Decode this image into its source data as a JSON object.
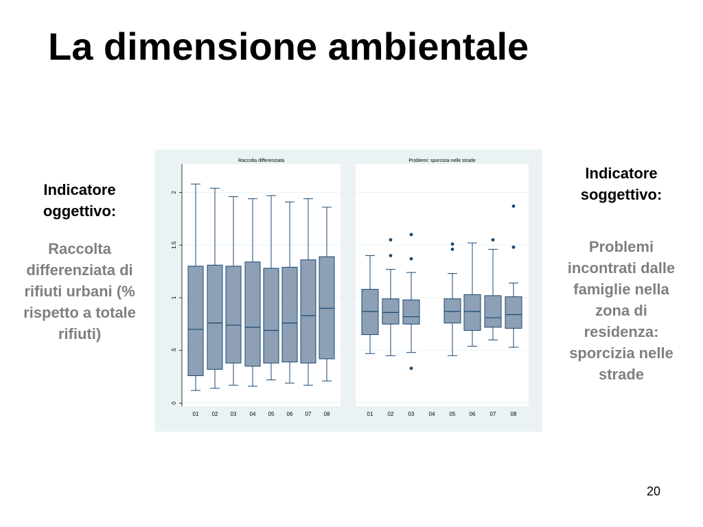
{
  "slide": {
    "title": "La dimensione ambientale",
    "page_number": "20"
  },
  "left_block": {
    "heading": "Indicatore oggettivo:",
    "body": "Raccolta differenziata di rifiuti urbani (% rispetto a totale rifiuti)"
  },
  "right_block": {
    "heading": "Indicatore soggettivo:",
    "body": "Problemi incontrati dalle famiglie nella zona di residenza: sporcizia nelle strade"
  },
  "colors": {
    "figure_bg": "#eaf2f3",
    "plot_bg": "#ffffff",
    "gridline": "#eaf2f3",
    "box_fill": "#8da0b6",
    "box_stroke": "#1a476f",
    "outlier": "#1a476f"
  },
  "chart_data": [
    {
      "type": "box",
      "title": "Raccolta differenziata",
      "xlabel": "",
      "ylabel": "",
      "categories": [
        "01",
        "02",
        "03",
        "04",
        "05",
        "06",
        "07",
        "08"
      ],
      "yticks": [
        "0",
        ".5",
        "1",
        "1.5",
        "2"
      ],
      "ylim": [
        -0.03,
        2.27
      ],
      "grid": true,
      "boxes": [
        {
          "min": 0.12,
          "q1": 0.26,
          "median": 0.7,
          "q3": 1.3,
          "max": 2.08,
          "outliers": []
        },
        {
          "min": 0.14,
          "q1": 0.32,
          "median": 0.76,
          "q3": 1.31,
          "max": 2.04,
          "outliers": []
        },
        {
          "min": 0.17,
          "q1": 0.38,
          "median": 0.74,
          "q3": 1.3,
          "max": 1.96,
          "outliers": []
        },
        {
          "min": 0.16,
          "q1": 0.35,
          "median": 0.72,
          "q3": 1.34,
          "max": 1.94,
          "outliers": []
        },
        {
          "min": 0.22,
          "q1": 0.38,
          "median": 0.69,
          "q3": 1.28,
          "max": 1.97,
          "outliers": []
        },
        {
          "min": 0.19,
          "q1": 0.39,
          "median": 0.76,
          "q3": 1.29,
          "max": 1.91,
          "outliers": []
        },
        {
          "min": 0.17,
          "q1": 0.38,
          "median": 0.83,
          "q3": 1.36,
          "max": 1.94,
          "outliers": []
        },
        {
          "min": 0.21,
          "q1": 0.42,
          "median": 0.9,
          "q3": 1.39,
          "max": 1.86,
          "outliers": []
        }
      ]
    },
    {
      "type": "box",
      "title": "Problemi: sporcizia nelle strade",
      "xlabel": "",
      "ylabel": "",
      "categories": [
        "01",
        "02",
        "03",
        "04",
        "05",
        "06",
        "07",
        "08"
      ],
      "ylim": [
        -0.03,
        2.27
      ],
      "grid": true,
      "boxes": [
        {
          "min": 0.47,
          "q1": 0.65,
          "median": 0.87,
          "q3": 1.08,
          "max": 1.4,
          "outliers": []
        },
        {
          "min": 0.45,
          "q1": 0.75,
          "median": 0.86,
          "q3": 0.99,
          "max": 1.27,
          "outliers": [
            1.55,
            1.4
          ]
        },
        {
          "min": 0.48,
          "q1": 0.75,
          "median": 0.82,
          "q3": 0.98,
          "max": 1.24,
          "outliers": [
            1.6,
            1.37,
            0.33
          ]
        },
        null,
        {
          "min": 0.45,
          "q1": 0.76,
          "median": 0.87,
          "q3": 0.99,
          "max": 1.23,
          "outliers": [
            1.51,
            1.46
          ]
        },
        {
          "min": 0.54,
          "q1": 0.69,
          "median": 0.87,
          "q3": 1.03,
          "max": 1.52,
          "outliers": []
        },
        {
          "min": 0.6,
          "q1": 0.72,
          "median": 0.81,
          "q3": 1.02,
          "max": 1.46,
          "outliers": [
            1.55
          ]
        },
        {
          "min": 0.53,
          "q1": 0.71,
          "median": 0.84,
          "q3": 1.01,
          "max": 1.14,
          "outliers": [
            1.87,
            1.48
          ]
        }
      ]
    }
  ]
}
